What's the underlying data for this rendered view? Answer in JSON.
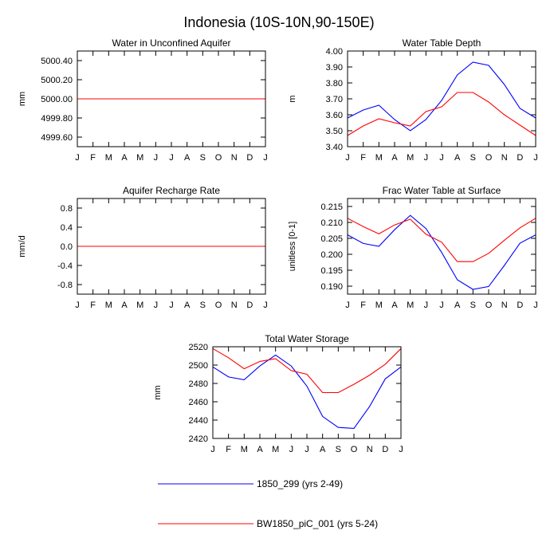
{
  "suptitle": "Indonesia (10S-10N,90-150E)",
  "months": [
    "J",
    "F",
    "M",
    "A",
    "M",
    "J",
    "J",
    "A",
    "S",
    "O",
    "N",
    "D",
    "J"
  ],
  "legend": [
    {
      "name": "1850_299 (yrs 2-49)",
      "color": "#0000ff"
    },
    {
      "name": "BW1850_piC_001 (yrs 5-24)",
      "color": "#ff0000"
    }
  ],
  "chart_data": [
    {
      "type": "line",
      "title": "Water in Unconfined Aquifer",
      "ylabel": "mm",
      "ylim": [
        4999.5,
        5000.5
      ],
      "yticks": [
        4999.6,
        4999.8,
        5000.0,
        5000.2,
        5000.4
      ],
      "ytick_labels": [
        "4999.60",
        "4999.80",
        "5000.00",
        "5000.20",
        "5000.40"
      ],
      "x": [
        "J",
        "F",
        "M",
        "A",
        "M",
        "J",
        "J",
        "A",
        "S",
        "O",
        "N",
        "D",
        "J"
      ],
      "series": [
        {
          "name": "1850_299 (yrs 2-49)",
          "color": "#0000ff",
          "values": [
            5000,
            5000,
            5000,
            5000,
            5000,
            5000,
            5000,
            5000,
            5000,
            5000,
            5000,
            5000,
            5000
          ]
        },
        {
          "name": "BW1850_piC_001 (yrs 5-24)",
          "color": "#ff0000",
          "values": [
            5000,
            5000,
            5000,
            5000,
            5000,
            5000,
            5000,
            5000,
            5000,
            5000,
            5000,
            5000,
            5000
          ]
        }
      ]
    },
    {
      "type": "line",
      "title": "Water Table Depth",
      "ylabel": "m",
      "ylim": [
        3.4,
        4.0
      ],
      "yticks": [
        3.4,
        3.5,
        3.6,
        3.7,
        3.8,
        3.9,
        4.0
      ],
      "ytick_labels": [
        "3.40",
        "3.50",
        "3.60",
        "3.70",
        "3.80",
        "3.90",
        "4.00"
      ],
      "x": [
        "J",
        "F",
        "M",
        "A",
        "M",
        "J",
        "J",
        "A",
        "S",
        "O",
        "N",
        "D",
        "J"
      ],
      "series": [
        {
          "name": "1850_299 (yrs 2-49)",
          "color": "#0000ff",
          "values": [
            3.58,
            3.63,
            3.66,
            3.57,
            3.5,
            3.57,
            3.69,
            3.85,
            3.93,
            3.91,
            3.79,
            3.64,
            3.58
          ]
        },
        {
          "name": "BW1850_piC_001 (yrs 5-24)",
          "color": "#ff0000",
          "values": [
            3.47,
            3.53,
            3.575,
            3.55,
            3.53,
            3.62,
            3.65,
            3.74,
            3.74,
            3.68,
            3.6,
            3.535,
            3.47
          ]
        }
      ]
    },
    {
      "type": "line",
      "title": "Aquifer Recharge Rate",
      "ylabel": "mm/d",
      "ylim": [
        -1.0,
        1.0
      ],
      "yticks": [
        -0.8,
        -0.4,
        0.0,
        0.4,
        0.8
      ],
      "ytick_labels": [
        "-0.8",
        "-0.4",
        "0.0",
        "0.4",
        "0.8"
      ],
      "x": [
        "J",
        "F",
        "M",
        "A",
        "M",
        "J",
        "J",
        "A",
        "S",
        "O",
        "N",
        "D",
        "J"
      ],
      "series": [
        {
          "name": "1850_299 (yrs 2-49)",
          "color": "#0000ff",
          "values": [
            0,
            0,
            0,
            0,
            0,
            0,
            0,
            0,
            0,
            0,
            0,
            0,
            0
          ]
        },
        {
          "name": "BW1850_piC_001 (yrs 5-24)",
          "color": "#ff0000",
          "values": [
            0,
            0,
            0,
            0,
            0,
            0,
            0,
            0,
            0,
            0,
            0,
            0,
            0
          ]
        }
      ]
    },
    {
      "type": "line",
      "title": "Frac Water Table at Surface",
      "ylabel": "unitless [0-1]",
      "ylim": [
        0.1875,
        0.2175
      ],
      "yticks": [
        0.19,
        0.195,
        0.2,
        0.205,
        0.21,
        0.215
      ],
      "ytick_labels": [
        "0.190",
        "0.195",
        "0.200",
        "0.205",
        "0.210",
        "0.215"
      ],
      "x": [
        "J",
        "F",
        "M",
        "A",
        "M",
        "J",
        "J",
        "A",
        "S",
        "O",
        "N",
        "D",
        "J"
      ],
      "series": [
        {
          "name": "1850_299 (yrs 2-49)",
          "color": "#0000ff",
          "values": [
            0.2061,
            0.2034,
            0.2025,
            0.2077,
            0.2122,
            0.2081,
            0.2006,
            0.192,
            0.189,
            0.1899,
            0.1965,
            0.2035,
            0.2061
          ]
        },
        {
          "name": "BW1850_piC_001 (yrs 5-24)",
          "color": "#ff0000",
          "values": [
            0.2113,
            0.2087,
            0.2064,
            0.2092,
            0.211,
            0.2063,
            0.2038,
            0.1977,
            0.1977,
            0.2003,
            0.2044,
            0.2083,
            0.2113
          ]
        }
      ]
    },
    {
      "type": "line",
      "title": "Total Water Storage",
      "ylabel": "mm",
      "ylim": [
        2420,
        2520
      ],
      "yticks": [
        2420,
        2440,
        2460,
        2480,
        2500,
        2520
      ],
      "ytick_labels": [
        "2420",
        "2440",
        "2460",
        "2480",
        "2500",
        "2520"
      ],
      "x": [
        "J",
        "F",
        "M",
        "A",
        "M",
        "J",
        "J",
        "A",
        "S",
        "O",
        "N",
        "D",
        "J"
      ],
      "series": [
        {
          "name": "1850_299 (yrs 2-49)",
          "color": "#0000ff",
          "values": [
            2498,
            2487,
            2484,
            2499,
            2511,
            2499,
            2477,
            2444,
            2432,
            2431,
            2455,
            2485,
            2498
          ]
        },
        {
          "name": "BW1850_piC_001 (yrs 5-24)",
          "color": "#ff0000",
          "values": [
            2518,
            2508,
            2496,
            2504,
            2507,
            2494,
            2490,
            2470,
            2470,
            2479,
            2489,
            2501,
            2518
          ]
        }
      ]
    }
  ]
}
